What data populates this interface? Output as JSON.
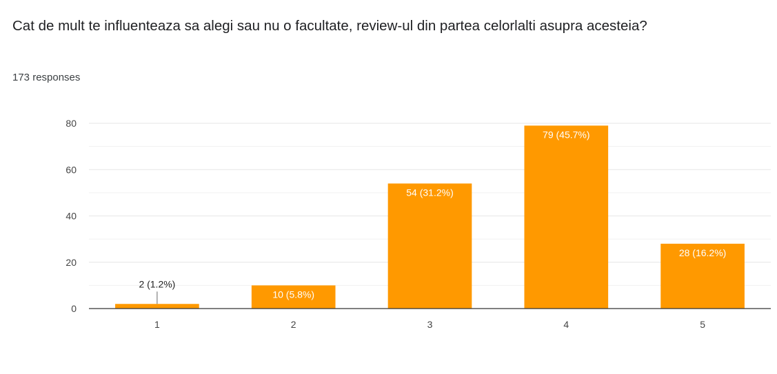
{
  "question": {
    "title": "Cat de mult te influenteaza sa alegi sau nu o facultate, review-ul din partea celorlalti asupra acesteia?",
    "responses": "173 responses"
  },
  "colors": {
    "bar": "#ff9900",
    "grid": "#e6e6e6",
    "axis": "#333333",
    "label_inside": "#ffffff",
    "label_outside": "#222222"
  },
  "chart_data": {
    "type": "bar",
    "categories": [
      "1",
      "2",
      "3",
      "4",
      "5"
    ],
    "values": [
      2,
      10,
      54,
      79,
      28
    ],
    "data_labels": [
      "2 (1.2%)",
      "10 (5.8%)",
      "54 (31.2%)",
      "79 (45.7%)",
      "28 (16.2%)"
    ],
    "yticks": [
      "0",
      "20",
      "40",
      "60",
      "80"
    ],
    "ylim": [
      0,
      80
    ],
    "grid": true,
    "legend": "none"
  }
}
